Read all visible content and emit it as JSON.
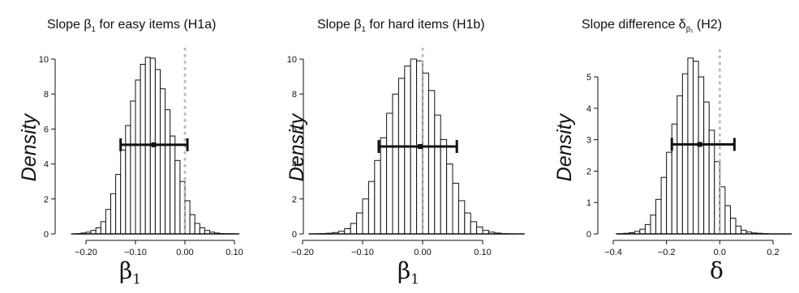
{
  "chart_data": [
    {
      "type": "bar",
      "title_prefix": "Slope β",
      "title_sub": "1",
      "title_suffix": " for easy items (H1a)",
      "ylabel": "Density",
      "xlabel": "β",
      "xlabel_sub": "1",
      "xlim": [
        -0.23,
        0.11
      ],
      "ylim": [
        0,
        10.5
      ],
      "xticks": [
        -0.2,
        -0.1,
        0.0,
        0.1
      ],
      "xtick_labels": [
        "−0.20",
        "−0.10",
        "0.00",
        "0.10"
      ],
      "yticks": [
        0,
        2,
        4,
        6,
        8,
        10
      ],
      "ytick_labels": [
        "0",
        "2",
        "4",
        "6",
        "8",
        "10"
      ],
      "bin_start": -0.22,
      "bin_width": 0.01,
      "values": [
        0.02,
        0.05,
        0.1,
        0.2,
        0.35,
        0.7,
        1.4,
        2.3,
        3.4,
        4.8,
        6.2,
        7.6,
        8.8,
        9.7,
        10.1,
        10.05,
        9.4,
        8.3,
        7.1,
        5.6,
        4.2,
        3.0,
        1.9,
        1.1,
        0.6,
        0.35,
        0.2,
        0.1,
        0.05,
        0.02,
        0.01,
        0.01,
        0.0
      ],
      "interval": {
        "low": -0.13,
        "mean": -0.063,
        "high": 0.005,
        "y": 5.1
      },
      "reference_x": 0.0
    },
    {
      "type": "bar",
      "title_prefix": "Slope β",
      "title_sub": "1",
      "title_suffix": " for hard items (H1b)",
      "ylabel": "Density",
      "xlabel": "β",
      "xlabel_sub": "1",
      "xlim": [
        -0.19,
        0.17
      ],
      "ylim": [
        0,
        10.5
      ],
      "xticks": [
        -0.2,
        -0.1,
        0.0,
        0.1
      ],
      "xtick_labels": [
        "−0.20",
        "−0.10",
        "0.00",
        "0.10"
      ],
      "yticks": [
        0,
        2,
        4,
        6,
        8,
        10
      ],
      "ytick_labels": [
        "0",
        "2",
        "4",
        "6",
        "8",
        "10"
      ],
      "bin_start": -0.18,
      "bin_width": 0.01,
      "values": [
        0.01,
        0.02,
        0.04,
        0.08,
        0.15,
        0.3,
        0.6,
        1.2,
        2.0,
        3.0,
        4.2,
        5.5,
        6.9,
        8.0,
        8.9,
        9.6,
        10.0,
        9.9,
        9.2,
        8.2,
        6.8,
        5.4,
        4.0,
        2.9,
        1.9,
        1.2,
        0.7,
        0.4,
        0.2,
        0.1,
        0.05,
        0.02,
        0.01,
        0.0
      ],
      "interval": {
        "low": -0.073,
        "mean": -0.004,
        "high": 0.057,
        "y": 5.0
      },
      "reference_x": 0.0
    },
    {
      "type": "bar",
      "title_prefix": "Slope difference δ",
      "title_sub": "β₁",
      "title_suffix": " (H2)",
      "ylabel": "Density",
      "xlabel": "δ",
      "xlabel_sub": "",
      "xlim": [
        -0.39,
        0.27
      ],
      "ylim": [
        0,
        5.8
      ],
      "xticks": [
        -0.4,
        -0.2,
        0.0,
        0.2
      ],
      "xtick_labels": [
        "−0.4",
        "−0.2",
        "0.0",
        "0.2"
      ],
      "yticks": [
        0,
        1,
        2,
        3,
        4,
        5
      ],
      "ytick_labels": [
        "0",
        "1",
        "2",
        "3",
        "4",
        "5"
      ],
      "bin_start": -0.38,
      "bin_width": 0.02,
      "values": [
        0.01,
        0.02,
        0.04,
        0.08,
        0.15,
        0.3,
        0.6,
        1.1,
        1.8,
        2.6,
        3.5,
        4.4,
        5.1,
        5.6,
        5.5,
        5.0,
        4.2,
        3.3,
        2.3,
        1.5,
        0.9,
        0.5,
        0.25,
        0.12,
        0.06,
        0.03,
        0.02,
        0.01,
        0.0,
        0.0,
        0.0,
        0.0
      ],
      "interval": {
        "low": -0.18,
        "mean": -0.075,
        "high": 0.055,
        "y": 2.85
      },
      "reference_x": 0.0
    }
  ]
}
